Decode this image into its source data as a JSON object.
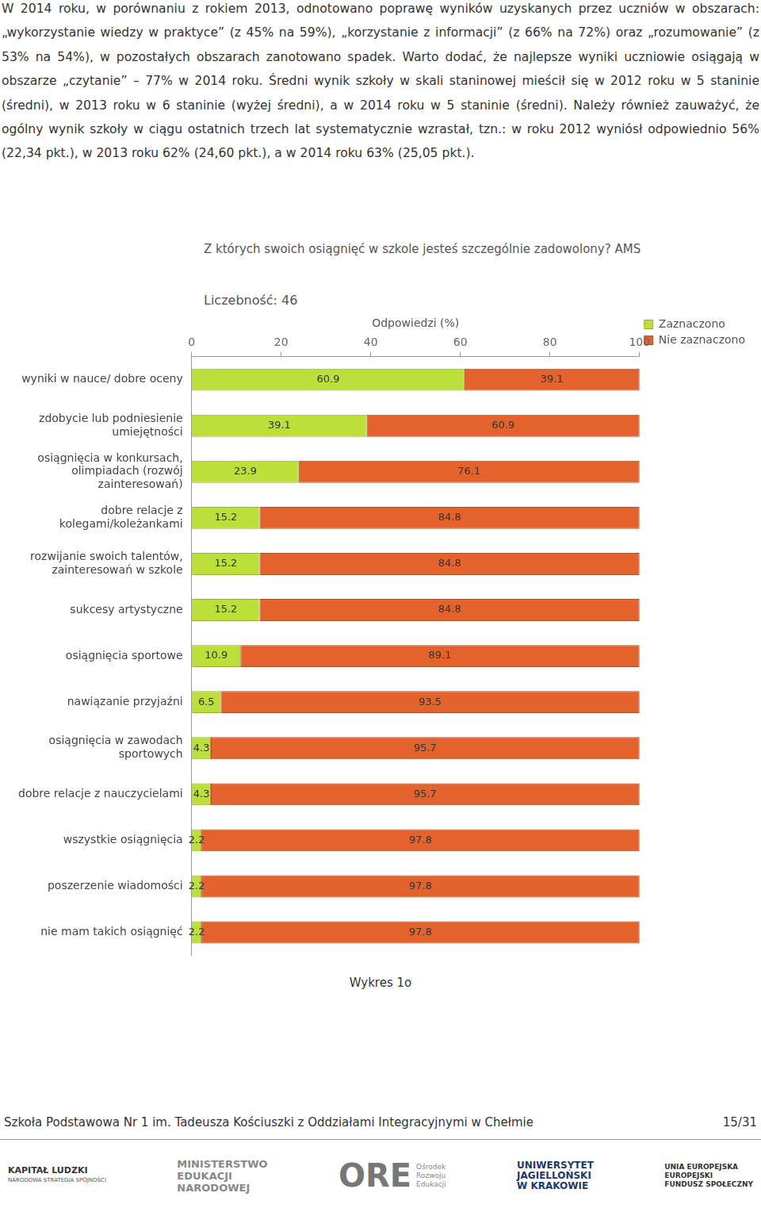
{
  "paragraph": "W 2014 roku, w porównaniu z rokiem 2013, odnotowano poprawę wyników uzyskanych przez uczniów w obszarach: „wykorzystanie wiedzy w praktyce” (z 45% na 59%), „korzystanie z informacji” (z 66% na 72%) oraz „rozumowanie” (z 53% na 54%), w pozostałych obszarach zanotowano spadek. Warto dodać, że najlepsze wyniki uczniowie osiągają w obszarze „czytanie” – 77% w 2014 roku. Średni wynik szkoły w skali staninowej mieścił się w 2012 roku w 5 staninie (średni), w 2013 roku w 6 staninie (wyżej średni), a w 2014 roku w 5 staninie (średni). Należy również zauważyć, że ogólny wynik szkoły w ciągu ostatnich trzech lat systematycznie wzrastał, tzn.: w roku 2012 wyniósł odpowiednio 56% (22,34 pkt.), w 2013 roku 62% (24,60 pkt.), a w 2014 roku 63% (25,05 pkt.).",
  "chart_data": {
    "type": "bar",
    "title": "Z których swoich osiągnięć w szkole jesteś szczególnie zadowolony? AMS",
    "subtitle": "Liczebność: 46",
    "x_label": "Odpowiedzi (%)",
    "orientation": "horizontal",
    "stacked": true,
    "data_labels": true,
    "grid": false,
    "legend": "top-right",
    "xlim": [
      0,
      100
    ],
    "xticks": [
      0,
      20,
      40,
      60,
      80,
      100
    ],
    "categories": [
      [
        "wyniki w nauce/ dobre oceny"
      ],
      [
        "zdobycie lub podniesienie",
        "umiejętności"
      ],
      [
        "osiągnięcia w konkursach,",
        "olimpiadach (rozwój",
        "zainteresowań)"
      ],
      [
        "dobre relacje z",
        "kolegami/koleżankami"
      ],
      [
        "rozwijanie swoich talentów,",
        "zainteresowań w szkole"
      ],
      [
        "sukcesy artystyczne"
      ],
      [
        "osiągnięcia sportowe"
      ],
      [
        "nawiązanie przyjaźni"
      ],
      [
        "osiągnięcia w zawodach",
        "sportowych"
      ],
      [
        "dobre relacje z nauczycielami"
      ],
      [
        "wszystkie osiągnięcia"
      ],
      [
        "poszerzenie wiadomości"
      ],
      [
        "nie mam takich osiągnięć"
      ]
    ],
    "series": [
      {
        "name": "Zaznaczono",
        "color": "#bcdf3a",
        "values": [
          60.9,
          39.1,
          23.9,
          15.2,
          15.2,
          15.2,
          10.9,
          6.5,
          4.3,
          4.3,
          2.2,
          2.2,
          2.2
        ]
      },
      {
        "name": "Nie zaznaczono",
        "color": "#e4622c",
        "values": [
          39.1,
          60.9,
          76.1,
          84.8,
          84.8,
          84.8,
          89.1,
          93.5,
          95.7,
          95.7,
          97.8,
          97.8,
          97.8
        ]
      }
    ]
  },
  "caption": "Wykres 1o",
  "footer": {
    "left": "Szkoła Podstawowa Nr 1 im. Tadeusza Kościuszki z Oddziałami Integracyjnymi w Chełmie",
    "right": "15/31"
  },
  "logos": {
    "kapital": [
      "KAPITAŁ LUDZKI",
      "NARODOWA STRATEGIA SPÓJNOŚCI"
    ],
    "men": [
      "MINISTERSTWO",
      "EDUKACJI",
      "NARODOWEJ"
    ],
    "ore": [
      "ORE",
      "Ośrodek",
      "Rozwoju",
      "Edukacji"
    ],
    "uj": [
      "UNIWERSYTET",
      "JAGIELLOŃSKI",
      "W KRAKOWIE"
    ],
    "ue": [
      "UNIA EUROPEJSKA",
      "EUROPEJSKI",
      "FUNDUSZ SPOŁECZNY"
    ]
  }
}
